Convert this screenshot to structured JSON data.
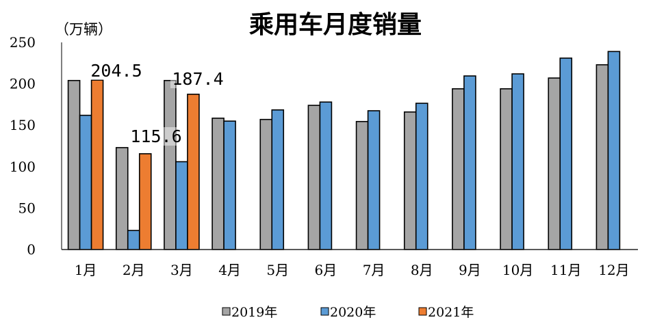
{
  "chart_data": {
    "type": "bar",
    "title": "乘用车月度销量",
    "ylabel": "（万辆）",
    "xlabel": "",
    "ylim": [
      0,
      250
    ],
    "yticks": [
      "0",
      "50",
      "100",
      "150",
      "200",
      "250"
    ],
    "grid": false,
    "legend_position": "bottom",
    "categories": [
      "1月",
      "2月",
      "3月",
      "4月",
      "5月",
      "6月",
      "7月",
      "8月",
      "9月",
      "10月",
      "11月",
      "12月"
    ],
    "series": [
      {
        "name": "2019年",
        "color": "#a5a5a5",
        "values": [
          204,
          123,
          204,
          158.5,
          157,
          174,
          154.5,
          166,
          194,
          194,
          207,
          223
        ]
      },
      {
        "name": "2020年",
        "color": "#5b9bd5",
        "values": [
          162,
          23,
          106,
          155,
          168.5,
          178,
          167.5,
          176.5,
          209.5,
          212,
          231,
          239
        ]
      },
      {
        "name": "2021年",
        "color": "#ed7d31",
        "values": [
          204.5,
          115.6,
          187.4,
          null,
          null,
          null,
          null,
          null,
          null,
          null,
          null,
          null
        ]
      }
    ],
    "data_labels": [
      "204.5",
      "115.6",
      "187.4"
    ]
  }
}
